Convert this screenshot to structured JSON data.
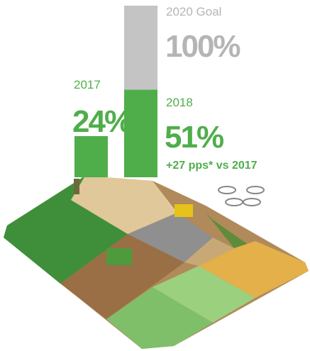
{
  "chart_data": {
    "type": "bar",
    "categories": [
      "2017",
      "2018"
    ],
    "values": [
      24,
      51
    ],
    "value_labels": [
      "24%",
      "51%"
    ],
    "color": "#4fae4a",
    "goal": {
      "label": "2020 Goal",
      "value": 100,
      "value_label": "100%",
      "color": "#c4c4c4"
    },
    "annotation": "+27 pps* vs 2017"
  }
}
